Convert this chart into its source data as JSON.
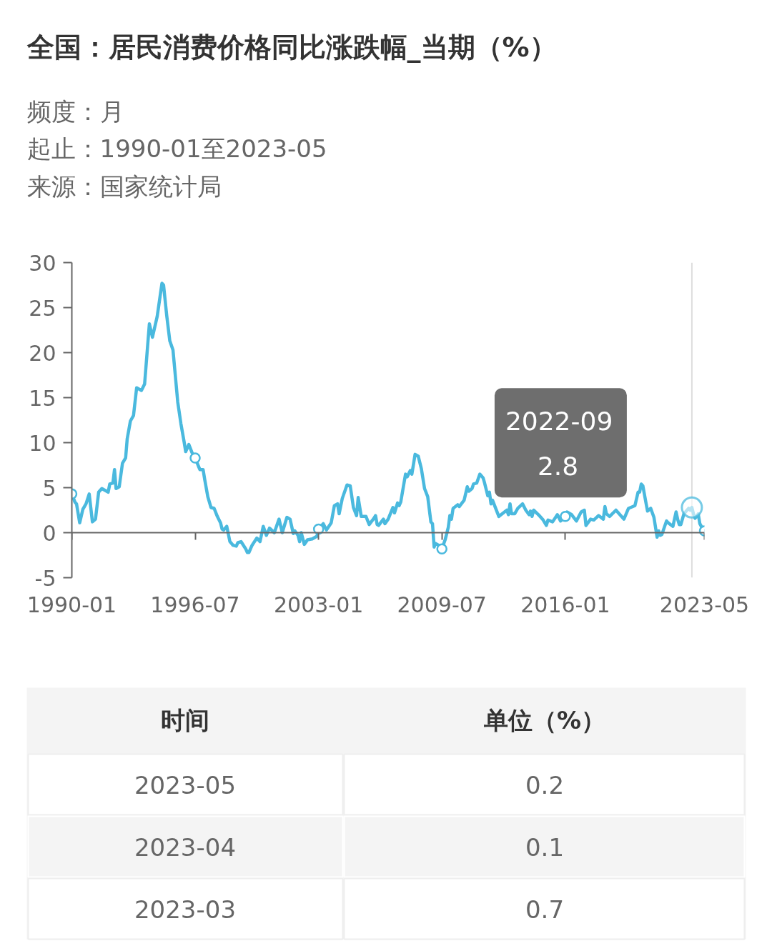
{
  "chart_data": {
    "type": "line",
    "title": "全国：居民消费价格同比涨跌幅_当期（%）",
    "subtitle": "频度：月",
    "xlim": [
      "1990-01",
      "2023-05"
    ],
    "xticks": [
      "1990-01",
      "1996-07",
      "2003-01",
      "2009-07",
      "2016-01",
      "2023-05"
    ],
    "ylim": [
      -5,
      30
    ],
    "yticks": [
      -5,
      0,
      5,
      10,
      15,
      20,
      25,
      30
    ],
    "ref_lines": [
      {
        "axis": "x",
        "value": "2022-09",
        "color": "#dddddd"
      }
    ],
    "annotations": [
      "起止：1990-01至2023-05",
      "来源：国家统计局",
      "2022-09",
      "2.8",
      "时间",
      "单位（%）",
      "2023-05",
      "0.2",
      "2023-04",
      "0.1",
      "2023-03",
      "0.7"
    ],
    "series": [
      {
        "color": "#4ab9de",
        "x": [
          "1990-01",
          "1990-03",
          "1990-04",
          "1990-06",
          "1990-08",
          "1990-10",
          "1990-12",
          "1991-02",
          "1991-04",
          "1991-06",
          "1991-08",
          "1991-10",
          "1991-12",
          "1992-01",
          "1992-03",
          "1992-04",
          "1992-05",
          "1992-07",
          "1992-09",
          "1992-11",
          "1992-12",
          "1993-02",
          "1993-04",
          "1993-06",
          "1993-09",
          "1993-11",
          "1994-02",
          "1994-04",
          "1994-07",
          "1994-10",
          "1994-11",
          "1995-01",
          "1995-03",
          "1995-05",
          "1995-08",
          "1995-10",
          "1995-12",
          "1996-01",
          "1996-03",
          "1996-05",
          "1996-07",
          "1996-09",
          "1996-10",
          "1996-12",
          "1997-01",
          "1997-03",
          "1997-05",
          "1997-07",
          "1997-09",
          "1997-11",
          "1997-12",
          "1998-01",
          "1998-03",
          "1998-05",
          "1998-07",
          "1998-09",
          "1998-10",
          "1998-12",
          "1999-03",
          "1999-04",
          "1999-05",
          "1999-07",
          "1999-10",
          "1999-12",
          "2000-02",
          "2000-04",
          "2000-06",
          "2000-09",
          "2000-12",
          "2001-02",
          "2001-05",
          "2001-07",
          "2001-09",
          "2001-10",
          "2001-12",
          "2002-01",
          "2002-02",
          "2002-04",
          "2002-06",
          "2002-09",
          "2002-12",
          "2003-01",
          "2003-04",
          "2003-06",
          "2003-09",
          "2003-11",
          "2004-01",
          "2004-02",
          "2004-04",
          "2004-07",
          "2004-09",
          "2004-11",
          "2005-01",
          "2005-02",
          "2005-04",
          "2005-07",
          "2005-09",
          "2005-12",
          "2006-01",
          "2006-02",
          "2006-03",
          "2006-06",
          "2006-07",
          "2006-09",
          "2006-12",
          "2007-01",
          "2007-03",
          "2007-04",
          "2007-05",
          "2007-08",
          "2007-09",
          "2007-11",
          "2007-12",
          "2008-02",
          "2008-04",
          "2008-06",
          "2008-08",
          "2008-10",
          "2008-12",
          "2009-01",
          "2009-02",
          "2009-03",
          "2009-05",
          "2009-07",
          "2009-09",
          "2009-11",
          "2009-12",
          "2010-01",
          "2010-02",
          "2010-05",
          "2010-06",
          "2010-09",
          "2010-11",
          "2010-12",
          "2011-02",
          "2011-03",
          "2011-05",
          "2011-07",
          "2011-09",
          "2011-10",
          "2011-12",
          "2012-01",
          "2012-02",
          "2012-03",
          "2012-07",
          "2012-12",
          "2013-01",
          "2013-02",
          "2013-03",
          "2013-05",
          "2013-07",
          "2013-10",
          "2013-12",
          "2014-02",
          "2014-03",
          "2014-04",
          "2014-05",
          "2014-08",
          "2014-11",
          "2015-01",
          "2015-02",
          "2015-05",
          "2015-08",
          "2015-10",
          "2016-01",
          "2016-02",
          "2016-05",
          "2016-08",
          "2016-11",
          "2017-01",
          "2017-02",
          "2017-05",
          "2017-07",
          "2017-10",
          "2018-01",
          "2018-02",
          "2018-03",
          "2018-05",
          "2018-09",
          "2018-12",
          "2019-02",
          "2019-05",
          "2019-09",
          "2019-11",
          "2019-12",
          "2020-01",
          "2020-02",
          "2020-04",
          "2020-05",
          "2020-07",
          "2020-09",
          "2020-11",
          "2020-12",
          "2021-01",
          "2021-02",
          "2021-05",
          "2021-06",
          "2021-09",
          "2021-11",
          "2021-12",
          "2022-01",
          "2022-02",
          "2022-04",
          "2022-07",
          "2022-08",
          "2022-09",
          "2022-10",
          "2022-11",
          "2022-12",
          "2023-01",
          "2023-02",
          "2023-03",
          "2023-04",
          "2023-05"
        ],
        "values": [
          4.3,
          3.4,
          3.2,
          1.1,
          2.6,
          3.2,
          4.3,
          1.2,
          1.5,
          4.5,
          4.9,
          4.7,
          4.5,
          5.4,
          5.5,
          7.0,
          4.9,
          5.1,
          7.7,
          8.3,
          10.4,
          12.4,
          13.0,
          16.1,
          15.8,
          16.5,
          23.2,
          21.7,
          24.0,
          27.7,
          27.5,
          24.1,
          21.3,
          20.3,
          14.5,
          12.1,
          10.1,
          9.0,
          9.8,
          8.9,
          8.3,
          7.4,
          7.0,
          7.0,
          5.9,
          4.0,
          2.8,
          2.7,
          1.8,
          1.1,
          0.4,
          0.3,
          0.7,
          -1.0,
          -1.4,
          -1.5,
          -1.1,
          -1.0,
          -1.8,
          -2.2,
          -2.2,
          -1.4,
          -0.6,
          -1.0,
          0.7,
          -0.3,
          0.5,
          0.0,
          1.5,
          0.0,
          1.7,
          1.5,
          -0.1,
          0.2,
          -0.3,
          -1.0,
          0.0,
          -1.3,
          -0.8,
          -0.7,
          -0.4,
          0.4,
          1.0,
          0.3,
          1.1,
          3.0,
          3.2,
          2.1,
          3.8,
          5.3,
          5.2,
          2.8,
          1.9,
          3.9,
          1.8,
          1.8,
          0.9,
          1.6,
          1.9,
          0.9,
          0.8,
          1.5,
          1.0,
          1.5,
          2.8,
          2.2,
          3.3,
          3.0,
          3.4,
          6.5,
          6.2,
          6.9,
          6.5,
          8.7,
          8.5,
          7.1,
          4.9,
          4.0,
          1.2,
          1.0,
          -1.6,
          -1.2,
          -1.4,
          -1.8,
          -0.8,
          0.6,
          1.9,
          1.5,
          2.7,
          3.1,
          2.9,
          3.6,
          5.1,
          4.6,
          4.9,
          5.4,
          5.5,
          6.5,
          6.1,
          5.5,
          4.1,
          4.5,
          3.2,
          3.6,
          1.8,
          2.5,
          2.0,
          3.2,
          2.1,
          2.1,
          2.7,
          3.2,
          2.5,
          2.0,
          2.4,
          1.8,
          2.5,
          2.0,
          1.4,
          0.8,
          1.4,
          1.2,
          2.0,
          1.3,
          1.8,
          2.3,
          2.0,
          1.3,
          2.3,
          2.5,
          0.8,
          1.5,
          1.4,
          1.9,
          1.5,
          2.9,
          2.1,
          1.8,
          2.5,
          1.9,
          1.5,
          2.7,
          3.0,
          4.5,
          4.5,
          5.4,
          5.2,
          3.3,
          2.4,
          2.7,
          1.7,
          -0.5,
          0.2,
          -0.3,
          -0.2,
          1.3,
          1.1,
          0.7,
          2.3,
          1.5,
          0.9,
          0.9,
          2.1,
          2.7,
          2.5,
          2.8,
          2.1,
          1.6,
          1.8,
          2.1,
          1.0,
          0.7,
          0.1,
          0.2
        ]
      },
      {
        "type": "scatter",
        "marker": "circle",
        "color": "#4ab9de",
        "x": [
          "1990-01",
          "1996-07",
          "2003-01",
          "2009-07",
          "2016-01",
          "2023-05"
        ],
        "values": [
          4.3,
          8.3,
          0.4,
          -1.8,
          1.8,
          0.2
        ]
      }
    ]
  }
}
